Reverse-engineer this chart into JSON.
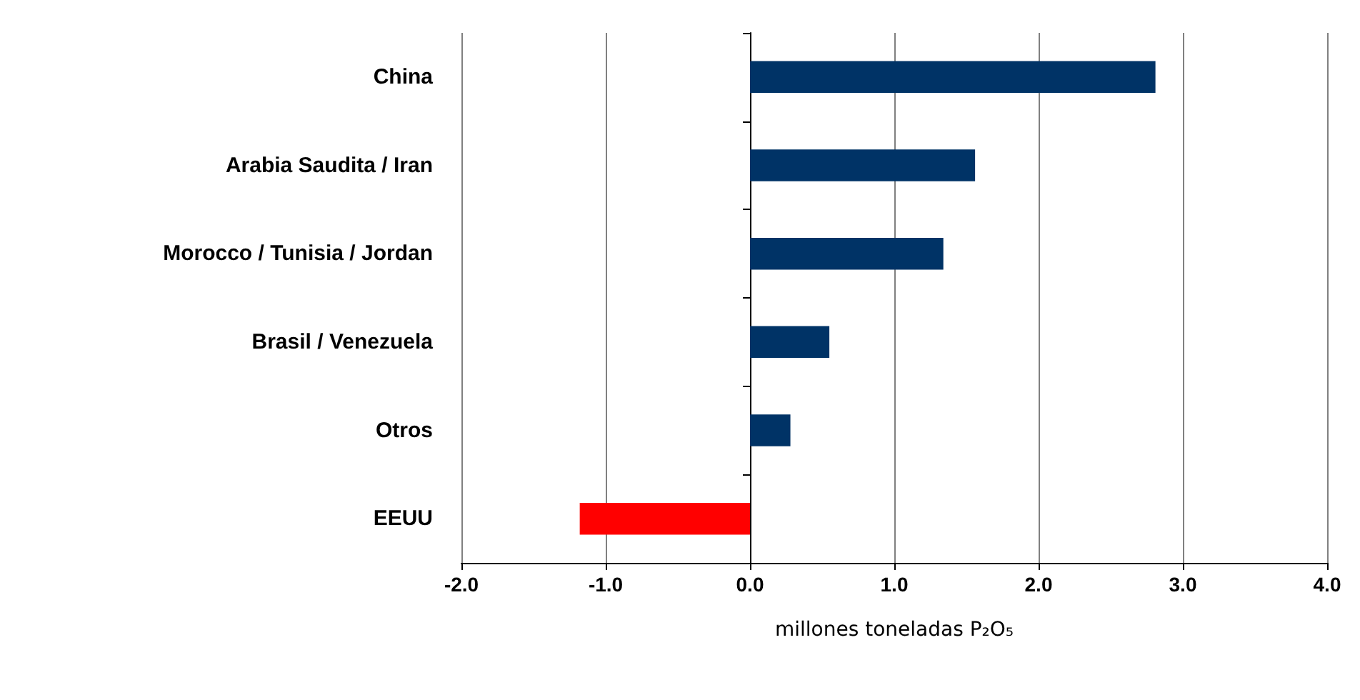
{
  "chart_data": {
    "type": "bar",
    "orientation": "horizontal",
    "categories": [
      "China",
      "Arabia Saudita / Iran",
      "Morocco / Tunisia / Jordan",
      "Brasil / Venezuela",
      "Otros",
      "EEUU"
    ],
    "values": [
      2.81,
      1.56,
      1.34,
      0.55,
      0.28,
      -1.18
    ],
    "colors": [
      "#003366",
      "#003366",
      "#003366",
      "#003366",
      "#003366",
      "#ff0000"
    ],
    "xlabel": "millones toneladas P₂O₅",
    "xlim": [
      -2,
      4
    ],
    "xticks": [
      {
        "value": -2,
        "label": "-2.0"
      },
      {
        "value": -1,
        "label": "-1.0"
      },
      {
        "value": 0,
        "label": "0.0"
      },
      {
        "value": 1,
        "label": "1.0"
      },
      {
        "value": 2,
        "label": "2.0"
      },
      {
        "value": 3,
        "label": "3.0"
      },
      {
        "value": 4,
        "label": "4.0"
      }
    ],
    "grid": "x"
  }
}
